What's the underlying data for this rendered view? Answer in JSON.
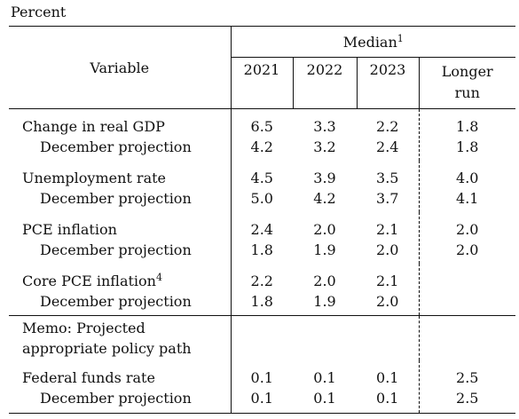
{
  "unit_label": "Percent",
  "header": {
    "variable": "Variable",
    "median": "Median",
    "median_note": "1",
    "years": [
      "2021",
      "2022",
      "2023"
    ],
    "longer_run_line1": "Longer",
    "longer_run_line2": "run"
  },
  "groups": [
    {
      "name": "Change in real GDP",
      "note": "",
      "values": [
        "6.5",
        "3.3",
        "2.2",
        "1.8"
      ],
      "sub_label": "December projection",
      "sub_values": [
        "4.2",
        "3.2",
        "2.4",
        "1.8"
      ]
    },
    {
      "name": "Unemployment rate",
      "note": "",
      "values": [
        "4.5",
        "3.9",
        "3.5",
        "4.0"
      ],
      "sub_label": "December projection",
      "sub_values": [
        "5.0",
        "4.2",
        "3.7",
        "4.1"
      ]
    },
    {
      "name": "PCE inflation",
      "note": "",
      "values": [
        "2.4",
        "2.0",
        "2.1",
        "2.0"
      ],
      "sub_label": "December projection",
      "sub_values": [
        "1.8",
        "1.9",
        "2.0",
        "2.0"
      ]
    },
    {
      "name": "Core PCE inflation",
      "note": "4",
      "values": [
        "2.2",
        "2.0",
        "2.1",
        ""
      ],
      "sub_label": "December projection",
      "sub_values": [
        "1.8",
        "1.9",
        "2.0",
        ""
      ]
    }
  ],
  "memo": {
    "line1": "Memo: Projected",
    "line2": "appropriate policy path",
    "name": "Federal funds rate",
    "values": [
      "0.1",
      "0.1",
      "0.1",
      "2.5"
    ],
    "sub_label": "December projection",
    "sub_values": [
      "0.1",
      "0.1",
      "0.1",
      "2.5"
    ]
  }
}
